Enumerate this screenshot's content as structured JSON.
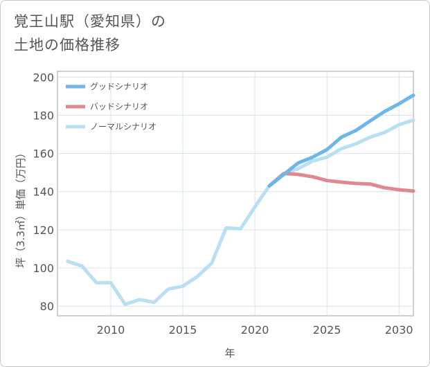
{
  "title_lines": [
    "覚王山駅（愛知県）の",
    "土地の価格推移"
  ],
  "chart_data": {
    "type": "line",
    "xlabel": "年",
    "ylabel": "坪（3.3㎡）単価（万円）",
    "xlim": [
      2006.3,
      2031
    ],
    "ylim": [
      75,
      203
    ],
    "xticks": [
      2010,
      2015,
      2020,
      2025,
      2030
    ],
    "yticks": [
      80,
      100,
      120,
      140,
      160,
      180,
      200
    ],
    "grid": true,
    "legend_position": "top-left",
    "series": [
      {
        "name": "グッドシナリオ",
        "color": "#6cb6ea",
        "x": [
          2021,
          2022,
          2023,
          2024,
          2025,
          2026,
          2027,
          2028,
          2029,
          2030,
          2031
        ],
        "y": [
          143,
          149,
          155,
          158,
          162,
          168.5,
          172,
          177,
          182,
          186,
          190.5
        ]
      },
      {
        "name": "バッドシナリオ",
        "color": "#e08890",
        "x": [
          2021,
          2022,
          2023,
          2024,
          2025,
          2026,
          2027,
          2028,
          2029,
          2030,
          2031
        ],
        "y": [
          143,
          149.5,
          149,
          147.8,
          145.8,
          145,
          144.3,
          144,
          142,
          141,
          140.3
        ]
      },
      {
        "name": "ノーマルシナリオ",
        "color": "#b8e0f2",
        "x": [
          2007,
          2008,
          2009,
          2010,
          2011,
          2012,
          2013,
          2014,
          2015,
          2016,
          2017,
          2018,
          2019,
          2020,
          2021,
          2022,
          2023,
          2024,
          2025,
          2026,
          2027,
          2028,
          2029,
          2030,
          2031
        ],
        "y": [
          103.5,
          101,
          92.3,
          92.3,
          81,
          83.5,
          82,
          89,
          90.5,
          95.5,
          102.5,
          121,
          120.5,
          132,
          143,
          149,
          152,
          156,
          158,
          162.5,
          165,
          168.5,
          171,
          175,
          177.5
        ]
      }
    ]
  }
}
